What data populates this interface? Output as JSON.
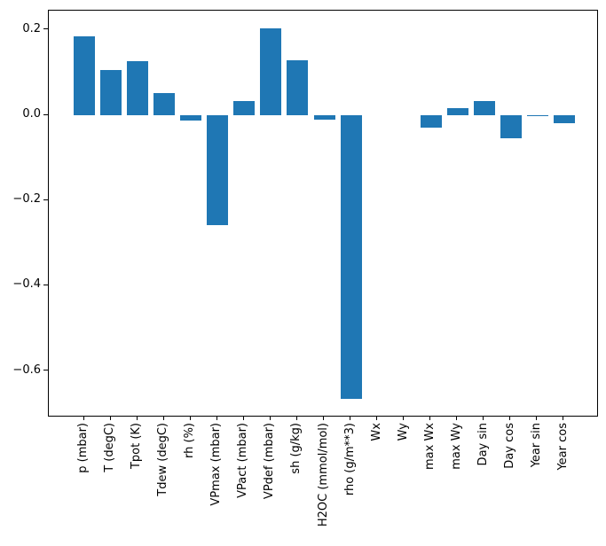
{
  "figure": {
    "background": "#ffffff",
    "axis_color": "#000000"
  },
  "chart_data": {
    "type": "bar",
    "title": "",
    "xlabel": "",
    "ylabel": "",
    "bar_color": "#1f77b4",
    "grid": false,
    "legend_position": "none",
    "x_tick_rotation_deg": 90,
    "categories": [
      "p (mbar)",
      "T (degC)",
      "Tpot (K)",
      "Tdew (degC)",
      "rh (%)",
      "VPmax (mbar)",
      "VPact (mbar)",
      "VPdef (mbar)",
      "sh (g/kg)",
      "H2OC (mmol/mol)",
      "rho (g/m**3)",
      "Wx",
      "Wy",
      "max Wx",
      "max Wy",
      "Day sin",
      "Day cos",
      "Year sin",
      "Year cos"
    ],
    "values": [
      0.186,
      0.107,
      0.126,
      0.052,
      -0.013,
      -0.258,
      0.033,
      0.204,
      0.128,
      -0.011,
      -0.666,
      0.0,
      0.0,
      -0.029,
      0.017,
      0.033,
      -0.054,
      -0.003,
      -0.018
    ],
    "y_ticks": [
      {
        "label": "0.2",
        "value": 0.2
      },
      {
        "label": "0.0",
        "value": 0.0
      },
      {
        "label": "−0.2",
        "value": -0.2
      },
      {
        "label": "−0.4",
        "value": -0.4
      },
      {
        "label": "−0.6",
        "value": -0.6
      }
    ],
    "ylim": [
      -0.709,
      0.243
    ]
  }
}
